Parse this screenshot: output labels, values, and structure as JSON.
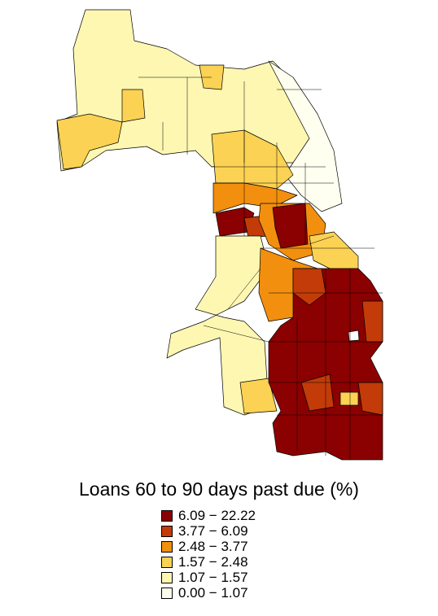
{
  "legend": {
    "title": "Loans 60 to 90 days past due (%)",
    "classes": [
      {
        "label": "6.09 − 22.22",
        "color": "#8b0000"
      },
      {
        "label": "3.77 − 6.09",
        "color": "#c23b08"
      },
      {
        "label": "2.48 − 3.77",
        "color": "#f28f0e"
      },
      {
        "label": "1.57 − 2.48",
        "color": "#fbd253"
      },
      {
        "label": "1.07 − 1.57",
        "color": "#fdf7b2"
      },
      {
        "label": "0.00 − 1.07",
        "color": "#fffff0"
      }
    ]
  }
}
